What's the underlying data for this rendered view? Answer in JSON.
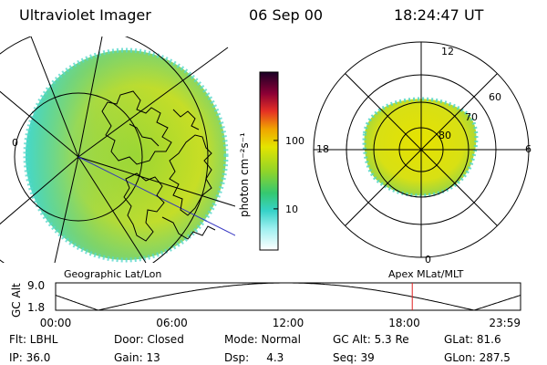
{
  "header": {
    "instrument": "Ultraviolet Imager",
    "date": "06 Sep 00",
    "time": "18:24:47 UT"
  },
  "colorbar": {
    "unit": "photon cm⁻²s⁻¹",
    "ticks": [
      {
        "label": "100",
        "value": 100
      },
      {
        "label": "10",
        "value": 10
      }
    ],
    "range": [
      2.5,
      1000
    ],
    "colors": [
      "#ffffff",
      "#9ef0f0",
      "#36d2c8",
      "#35c870",
      "#8fd42a",
      "#e4e400",
      "#f0a400",
      "#e53024",
      "#8b0035",
      "#1a0025"
    ]
  },
  "left_map": {
    "label": "Geographic Lat/Lon",
    "edge_label": "0"
  },
  "right_map": {
    "label": "Apex MLat/MLT",
    "mlt_labels": [
      {
        "text": "12",
        "pos": "top"
      },
      {
        "text": "18",
        "pos": "left"
      },
      {
        "text": "6",
        "pos": "right"
      },
      {
        "text": "0",
        "pos": "bottom"
      }
    ],
    "lat_labels": [
      "60",
      "70",
      "80"
    ]
  },
  "altitude_plot": {
    "ylabel": "GC Alt",
    "yticks": [
      "9.0",
      "1.8"
    ],
    "yrange": [
      1.8,
      9.0
    ],
    "xticks": [
      "00:00",
      "06:00",
      "12:00",
      "18:00",
      "23:59"
    ],
    "current_hour": 18.41,
    "marker_color": "#e02020"
  },
  "status": {
    "row1": [
      {
        "key": "flt",
        "text": "Flt: LBHL"
      },
      {
        "key": "door",
        "text": "Door: Closed"
      },
      {
        "key": "mode",
        "text": "Mode: Normal"
      },
      {
        "key": "gc_alt",
        "text": "GC Alt: 5.3 Re"
      },
      {
        "key": "glat",
        "text": "GLat: 81.6"
      }
    ],
    "row2": [
      {
        "key": "ip",
        "text": "IP: 36.0"
      },
      {
        "key": "gain",
        "text": "Gain: 13"
      },
      {
        "key": "dsp",
        "text": "Dsp:     4.3"
      },
      {
        "key": "seq",
        "text": "Seq: 39"
      },
      {
        "key": "glon",
        "text": "GLon: 287.5"
      }
    ]
  }
}
